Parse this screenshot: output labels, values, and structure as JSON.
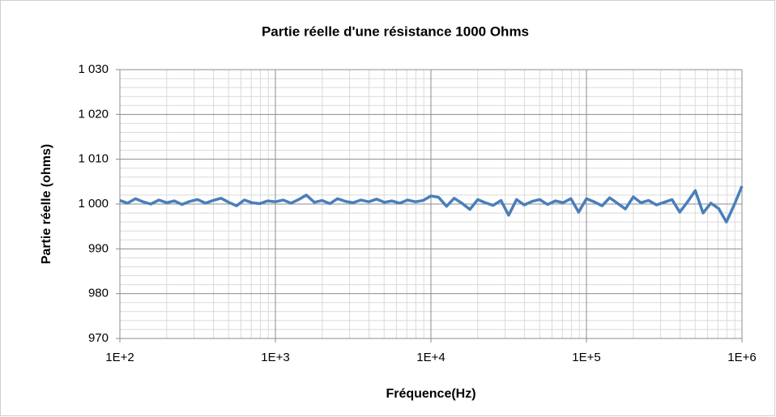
{
  "chart_data": {
    "type": "line",
    "title": "Partie réelle d'une résistance 1000 Ohms",
    "x_label": "Fréquence(Hz)",
    "y_label": "Partie réelle (ohms)",
    "log_x": true,
    "grid": true,
    "color": "#4a7ebb",
    "xlim": [
      100,
      1000000
    ],
    "xticks": [
      {
        "value": 100,
        "label": "1E+2"
      },
      {
        "value": 1000,
        "label": "1E+3"
      },
      {
        "value": 10000,
        "label": "1E+4"
      },
      {
        "value": 100000,
        "label": "1E+5"
      },
      {
        "value": 1000000,
        "label": "1E+6"
      }
    ],
    "xminorticks": [
      200,
      300,
      400,
      500,
      600,
      700,
      800,
      900,
      2000,
      3000,
      4000,
      5000,
      6000,
      7000,
      8000,
      9000,
      20000,
      30000,
      40000,
      50000,
      60000,
      70000,
      80000,
      90000,
      200000,
      300000,
      400000,
      500000,
      600000,
      700000,
      800000,
      900000
    ],
    "ylim": [
      970,
      1030
    ],
    "yticks": [
      970,
      980,
      990,
      {
        "value": 1000,
        "label": "1 000"
      },
      {
        "value": 1010,
        "label": "1 010"
      },
      {
        "value": 1020,
        "label": "1 020"
      },
      {
        "value": 1030,
        "label": "1 030"
      }
    ],
    "yminorticks": [
      972,
      974,
      976,
      978,
      982,
      984,
      986,
      988,
      992,
      994,
      996,
      998,
      1002,
      1004,
      1006,
      1008,
      1012,
      1014,
      1016,
      1018,
      1022,
      1024,
      1026,
      1028
    ],
    "x": [
      100,
      112,
      126,
      141,
      158,
      178,
      200,
      224,
      251,
      282,
      316,
      355,
      398,
      447,
      501,
      562,
      631,
      708,
      794,
      891,
      1000,
      1120,
      1260,
      1410,
      1580,
      1780,
      2000,
      2240,
      2510,
      2820,
      3160,
      3550,
      3980,
      4470,
      5010,
      5620,
      6310,
      7080,
      7940,
      8910,
      10000,
      11200,
      12600,
      14100,
      15800,
      17800,
      20000,
      22400,
      25100,
      28200,
      31600,
      35500,
      39800,
      44700,
      50100,
      56200,
      63100,
      70800,
      79400,
      89100,
      100000,
      112000,
      126000,
      141000,
      158000,
      178000,
      200000,
      224000,
      251000,
      282000,
      316000,
      355000,
      398000,
      447000,
      501000,
      562000,
      631000,
      708000,
      794000,
      891000,
      1000000
    ],
    "values": [
      1000.8,
      1000.2,
      1001.2,
      1000.5,
      1000.0,
      1000.9,
      1000.3,
      1000.7,
      999.9,
      1000.6,
      1001.0,
      1000.2,
      1000.8,
      1001.3,
      1000.4,
      999.6,
      1000.9,
      1000.3,
      1000.1,
      1000.7,
      1000.5,
      1000.9,
      1000.2,
      1001.0,
      1002.0,
      1000.4,
      1000.8,
      1000.1,
      1001.2,
      1000.6,
      1000.3,
      1000.9,
      1000.5,
      1001.1,
      1000.4,
      1000.7,
      1000.2,
      1000.9,
      1000.5,
      1000.8,
      1001.8,
      1001.5,
      999.5,
      1001.3,
      1000.2,
      998.8,
      1001.0,
      1000.3,
      999.7,
      1000.8,
      997.5,
      1001.0,
      999.8,
      1000.6,
      1001.0,
      999.9,
      1000.7,
      1000.3,
      1001.2,
      998.2,
      1001.2,
      1000.5,
      999.6,
      1001.4,
      1000.2,
      998.9,
      1001.6,
      1000.3,
      1000.8,
      999.8,
      1000.4,
      1001.0,
      998.2,
      1000.5,
      1003.0,
      998.0,
      1000.2,
      999.0,
      996.0,
      999.8,
      1004.0
    ]
  }
}
